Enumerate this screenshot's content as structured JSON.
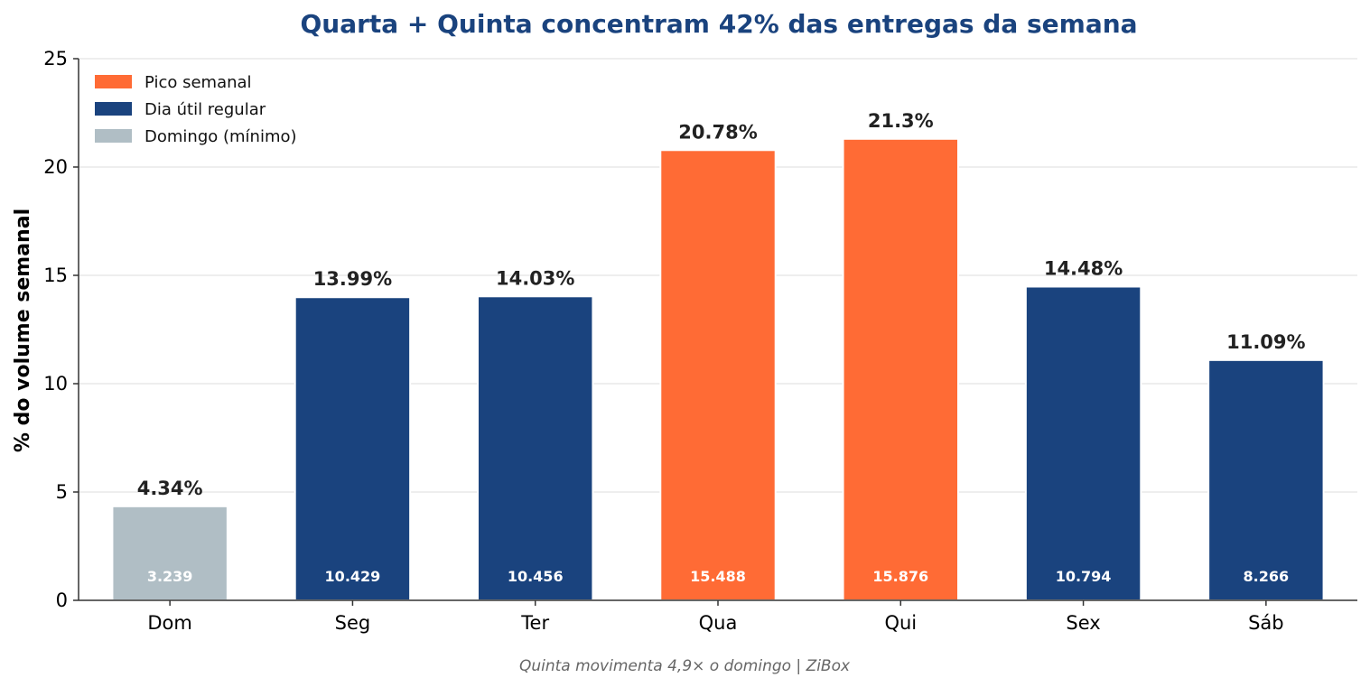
{
  "chart_data": {
    "type": "bar",
    "title": "Quarta + Quinta concentram 42% das entregas da semana",
    "ylabel": "% do volume semanal",
    "xlabel": "",
    "ylim": [
      0,
      25
    ],
    "yticks": [
      0,
      5,
      10,
      15,
      20,
      25
    ],
    "grid": "horizontal",
    "legend_position": "top-left",
    "categories": [
      "Dom",
      "Seg",
      "Ter",
      "Qua",
      "Qui",
      "Sex",
      "Sáb"
    ],
    "values": [
      4.34,
      13.99,
      14.03,
      20.78,
      21.3,
      14.48,
      11.09
    ],
    "value_labels": [
      "4.34%",
      "13.99%",
      "14.03%",
      "20.78%",
      "21.3%",
      "14.48%",
      "11.09%"
    ],
    "count_labels": [
      "3.239",
      "10.429",
      "10.456",
      "15.488",
      "15.876",
      "10.794",
      "8.266"
    ],
    "bar_groups": [
      "minimo",
      "regular",
      "regular",
      "pico",
      "pico",
      "regular",
      "regular"
    ],
    "legend": [
      {
        "key": "pico",
        "label": "Pico semanal",
        "color": "#FF6B35"
      },
      {
        "key": "regular",
        "label": "Dia útil regular",
        "color": "#1A437E"
      },
      {
        "key": "minimo",
        "label": "Domingo (mínimo)",
        "color": "#B0BEC5"
      }
    ],
    "footer": "Quinta movimenta 4,9× o domingo | ZiBox"
  },
  "colors": {
    "title": "#1A437E",
    "grid": "#e8e8e8",
    "axis": "#333333"
  }
}
